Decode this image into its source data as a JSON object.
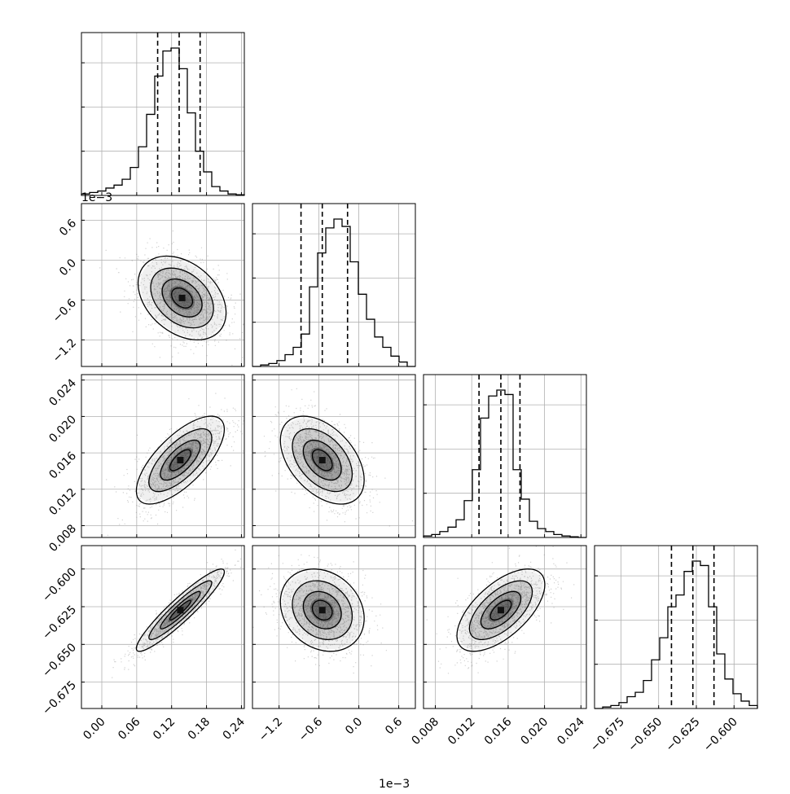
{
  "chart_data": {
    "type": "corner",
    "offset_text": "1e−3",
    "grid": true,
    "variables": [
      {
        "range": [
          -3.5e-05,
          0.000245
        ],
        "ticks": [
          {
            "v": 0.0,
            "label": "0.00"
          },
          {
            "v": 6e-05,
            "label": "0.06"
          },
          {
            "v": 0.00012,
            "label": "0.12"
          },
          {
            "v": 0.00018,
            "label": "0.18"
          },
          {
            "v": 0.00024,
            "label": "0.24"
          }
        ],
        "quantiles": [
          9.6e-05,
          0.000133,
          0.000169
        ],
        "hist": [
          0.01,
          0.02,
          0.03,
          0.05,
          0.07,
          0.11,
          0.19,
          0.33,
          0.55,
          0.81,
          0.98,
          1.0,
          0.86,
          0.56,
          0.3,
          0.16,
          0.06,
          0.03,
          0.01,
          0.005
        ],
        "mode": 0.000138
      },
      {
        "range": [
          -1.6,
          0.85
        ],
        "ticks": [
          {
            "v": -1.2,
            "label": "−1.2"
          },
          {
            "v": -0.6,
            "label": "−0.6"
          },
          {
            "v": 0.0,
            "label": "0.0"
          },
          {
            "v": 0.6,
            "label": "0.6"
          }
        ],
        "quantiles": [
          -0.87,
          -0.55,
          -0.17
        ],
        "hist": [
          0.0,
          0.01,
          0.02,
          0.04,
          0.08,
          0.13,
          0.22,
          0.54,
          0.77,
          0.94,
          1.0,
          0.95,
          0.71,
          0.49,
          0.32,
          0.2,
          0.13,
          0.07,
          0.03,
          0.0
        ],
        "mode": -0.55
      },
      {
        "range": [
          0.0067,
          0.0246
        ],
        "ticks": [
          {
            "v": 0.008,
            "label": "0.008"
          },
          {
            "v": 0.012,
            "label": "0.012"
          },
          {
            "v": 0.016,
            "label": "0.016"
          },
          {
            "v": 0.02,
            "label": "0.020"
          },
          {
            "v": 0.024,
            "label": "0.024"
          }
        ],
        "quantiles": [
          0.0128,
          0.0152,
          0.0173
        ],
        "hist": [
          0.01,
          0.02,
          0.04,
          0.07,
          0.12,
          0.25,
          0.46,
          0.81,
          0.96,
          1.0,
          0.97,
          0.46,
          0.26,
          0.11,
          0.06,
          0.04,
          0.02,
          0.01,
          0.005,
          0.0
        ],
        "mode": 0.0155
      },
      {
        "range": [
          -0.6925,
          -0.5845
        ],
        "ticks": [
          {
            "v": -0.675,
            "label": "−0.675"
          },
          {
            "v": -0.65,
            "label": "−0.650"
          },
          {
            "v": -0.625,
            "label": "−0.625"
          },
          {
            "v": -0.6,
            "label": "−0.600"
          }
        ],
        "quantiles": [
          -0.6415,
          -0.6273,
          -0.6133
        ],
        "hist": [
          0.0,
          0.01,
          0.02,
          0.04,
          0.08,
          0.11,
          0.19,
          0.33,
          0.48,
          0.69,
          0.77,
          0.93,
          1.0,
          0.97,
          0.69,
          0.37,
          0.2,
          0.1,
          0.05,
          0.02
        ],
        "mode": -0.628
      }
    ],
    "pairs": [
      {
        "row": 1,
        "col": 0,
        "center": [
          0.000138,
          -0.57
        ],
        "sigma": [
          3.6e-05,
          0.3
        ],
        "rho": -0.35
      },
      {
        "row": 2,
        "col": 0,
        "center": [
          0.000135,
          0.0152
        ],
        "sigma": [
          3.6e-05,
          0.0023
        ],
        "rho": 0.7
      },
      {
        "row": 2,
        "col": 1,
        "center": [
          -0.55,
          0.0152
        ],
        "sigma": [
          0.3,
          0.0023
        ],
        "rho": -0.45
      },
      {
        "row": 3,
        "col": 0,
        "center": [
          0.000135,
          -0.6273
        ],
        "sigma": [
          3.6e-05,
          0.013
        ],
        "rho": 0.93
      },
      {
        "row": 3,
        "col": 1,
        "center": [
          -0.55,
          -0.6273
        ],
        "sigma": [
          0.3,
          0.013
        ],
        "rho": -0.2
      },
      {
        "row": 3,
        "col": 2,
        "center": [
          0.0152,
          -0.6273
        ],
        "sigma": [
          0.0023,
          0.013
        ],
        "rho": 0.62
      }
    ]
  }
}
